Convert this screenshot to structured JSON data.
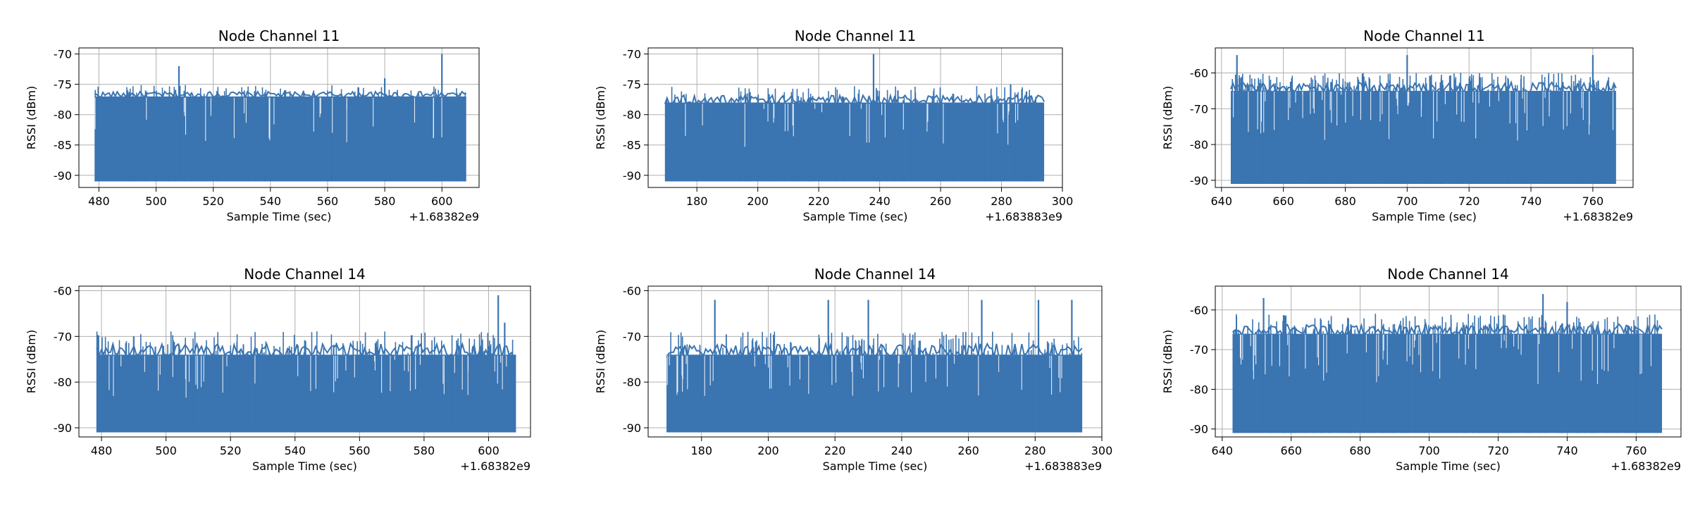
{
  "chart_data": [
    {
      "type": "line",
      "title": "Node Channel 11",
      "xlabel": "Sample Time (sec)",
      "ylabel": "RSSI (dBm)",
      "x_offset": "+1.68382e9",
      "xlim": [
        473,
        613
      ],
      "ylim": [
        -92,
        -69
      ],
      "xticks": [
        480,
        500,
        520,
        540,
        560,
        580,
        600
      ],
      "yticks": [
        -90,
        -85,
        -80,
        -75,
        -70
      ],
      "grid": true,
      "color": "#3a74b1",
      "x_start": 478.5,
      "x_end": 608.5,
      "floor": -91,
      "band_top": -77,
      "noise": 1.0,
      "spike_count": 70,
      "peaks": [
        {
          "x": 508,
          "y": -72
        },
        {
          "x": 580,
          "y": -74
        },
        {
          "x": 600,
          "y": -70
        },
        {
          "x": 490,
          "y": -76
        },
        {
          "x": 545,
          "y": -76
        }
      ]
    },
    {
      "type": "line",
      "title": "Node Channel 11",
      "xlabel": "Sample Time (sec)",
      "ylabel": "RSSI (dBm)",
      "x_offset": "+1.683883e9",
      "xlim": [
        164,
        300
      ],
      "ylim": [
        -92,
        -69
      ],
      "xticks": [
        180,
        200,
        220,
        240,
        260,
        280,
        300
      ],
      "yticks": [
        -90,
        -85,
        -80,
        -75,
        -70
      ],
      "grid": true,
      "color": "#3a74b1",
      "x_start": 169.5,
      "x_end": 294,
      "floor": -91,
      "band_top": -78,
      "noise": 1.5,
      "spike_count": 90,
      "peaks": [
        {
          "x": 238,
          "y": -70
        },
        {
          "x": 283,
          "y": -75
        },
        {
          "x": 246,
          "y": -76
        },
        {
          "x": 200,
          "y": -77
        }
      ]
    },
    {
      "type": "line",
      "title": "Node Channel 11",
      "xlabel": "Sample Time (sec)",
      "ylabel": "RSSI (dBm)",
      "x_offset": "+1.68382e9",
      "xlim": [
        638,
        773
      ],
      "ylim": [
        -92,
        -53
      ],
      "xticks": [
        640,
        660,
        680,
        700,
        720,
        740,
        760
      ],
      "yticks": [
        -90,
        -80,
        -70,
        -60
      ],
      "grid": true,
      "color": "#3a74b1",
      "x_start": 643,
      "x_end": 767.5,
      "floor": -91,
      "band_top": -65,
      "noise": 3,
      "spike_count": 190,
      "peaks": [
        {
          "x": 645,
          "y": -55
        },
        {
          "x": 700,
          "y": -55
        },
        {
          "x": 760,
          "y": -55
        }
      ]
    },
    {
      "type": "line",
      "title": "Node Channel 14",
      "xlabel": "Sample Time (sec)",
      "ylabel": "RSSI (dBm)",
      "x_offset": "+1.68382e9",
      "xlim": [
        473,
        613
      ],
      "ylim": [
        -92,
        -59
      ],
      "xticks": [
        480,
        500,
        520,
        540,
        560,
        580,
        600
      ],
      "yticks": [
        -90,
        -80,
        -70,
        -60
      ],
      "grid": true,
      "color": "#3a74b1",
      "x_start": 478.5,
      "x_end": 608.5,
      "floor": -91,
      "band_top": -74,
      "noise": 3,
      "spike_count": 130,
      "peaks": [
        {
          "x": 603,
          "y": -61
        },
        {
          "x": 605,
          "y": -67
        },
        {
          "x": 490,
          "y": -70
        }
      ]
    },
    {
      "type": "line",
      "title": "Node Channel 14",
      "xlabel": "Sample Time (sec)",
      "ylabel": "RSSI (dBm)",
      "x_offset": "+1.683883e9",
      "xlim": [
        164,
        300
      ],
      "ylim": [
        -92,
        -59
      ],
      "xticks": [
        180,
        200,
        220,
        240,
        260,
        280,
        300
      ],
      "yticks": [
        -90,
        -80,
        -70,
        -60
      ],
      "grid": true,
      "color": "#3a74b1",
      "x_start": 169.5,
      "x_end": 294,
      "floor": -91,
      "band_top": -74,
      "noise": 3,
      "spike_count": 130,
      "peaks": [
        {
          "x": 184,
          "y": -62
        },
        {
          "x": 218,
          "y": -62
        },
        {
          "x": 230,
          "y": -62
        },
        {
          "x": 264,
          "y": -62
        },
        {
          "x": 281,
          "y": -62
        },
        {
          "x": 291,
          "y": -62
        }
      ]
    },
    {
      "type": "line",
      "title": "Node Channel 14",
      "xlabel": "Sample Time (sec)",
      "ylabel": "RSSI (dBm)",
      "x_offset": "+1.68382e9",
      "xlim": [
        638,
        773
      ],
      "ylim": [
        -92,
        -54
      ],
      "xticks": [
        640,
        660,
        680,
        700,
        720,
        740,
        760
      ],
      "yticks": [
        -90,
        -80,
        -70,
        -60
      ],
      "grid": true,
      "color": "#3a74b1",
      "x_start": 643,
      "x_end": 767.5,
      "floor": -91,
      "band_top": -66,
      "noise": 3,
      "spike_count": 170,
      "peaks": [
        {
          "x": 652,
          "y": -57
        },
        {
          "x": 733,
          "y": -56
        },
        {
          "x": 740,
          "y": -58
        }
      ]
    }
  ]
}
